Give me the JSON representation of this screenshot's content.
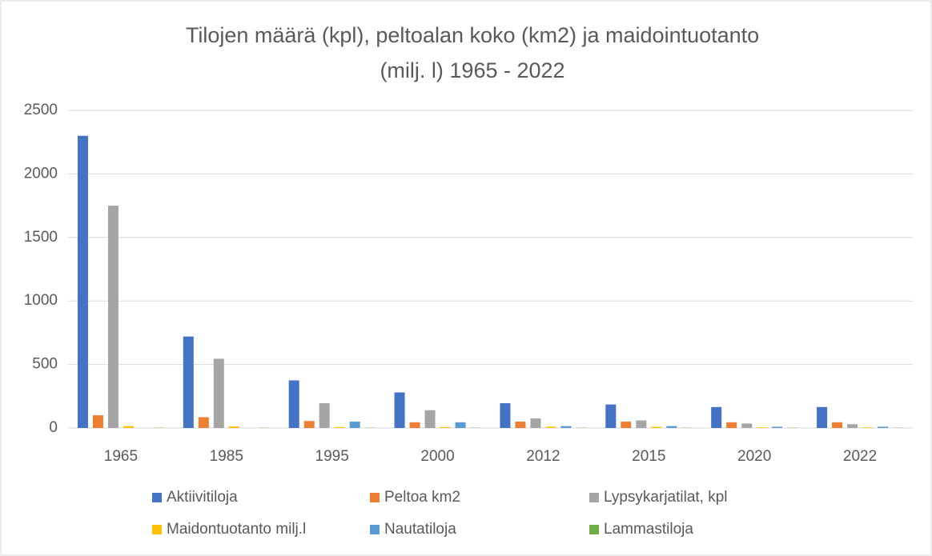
{
  "chart_data": {
    "type": "bar",
    "title": [
      "Tilojen määrä (kpl), peltoalan koko (km2) ja maidointuotanto",
      "(milj. l) 1965 - 2022"
    ],
    "categories": [
      "1965",
      "1985",
      "1995",
      "2000",
      "2012",
      "2015",
      "2020",
      "2022"
    ],
    "series": [
      {
        "name": "Aktiivitiloja",
        "color": "#4472c4",
        "values": [
          2300,
          720,
          375,
          280,
          195,
          185,
          165,
          165
        ]
      },
      {
        "name": "Peltoa km2",
        "color": "#ed7d31",
        "values": [
          100,
          85,
          55,
          45,
          50,
          50,
          45,
          45
        ]
      },
      {
        "name": "Lypsykarjatilat, kpl",
        "color": "#a5a5a5",
        "values": [
          1750,
          545,
          195,
          140,
          75,
          60,
          35,
          30
        ]
      },
      {
        "name": "Maidontuotanto milj.l",
        "color": "#ffc000",
        "values": [
          15,
          12,
          8,
          7,
          10,
          9,
          5,
          5
        ]
      },
      {
        "name": "Nautatiloja",
        "color": "#5b9bd5",
        "values": [
          0,
          0,
          50,
          45,
          15,
          15,
          10,
          10
        ]
      },
      {
        "name": "Lammastiloja",
        "color": "#70ad47",
        "values": [
          2,
          2,
          2,
          2,
          2,
          2,
          2,
          2
        ]
      }
    ],
    "ylim": [
      0,
      2500
    ],
    "yticks": [
      0,
      500,
      1000,
      1500,
      2000,
      2500
    ],
    "grid": true
  }
}
